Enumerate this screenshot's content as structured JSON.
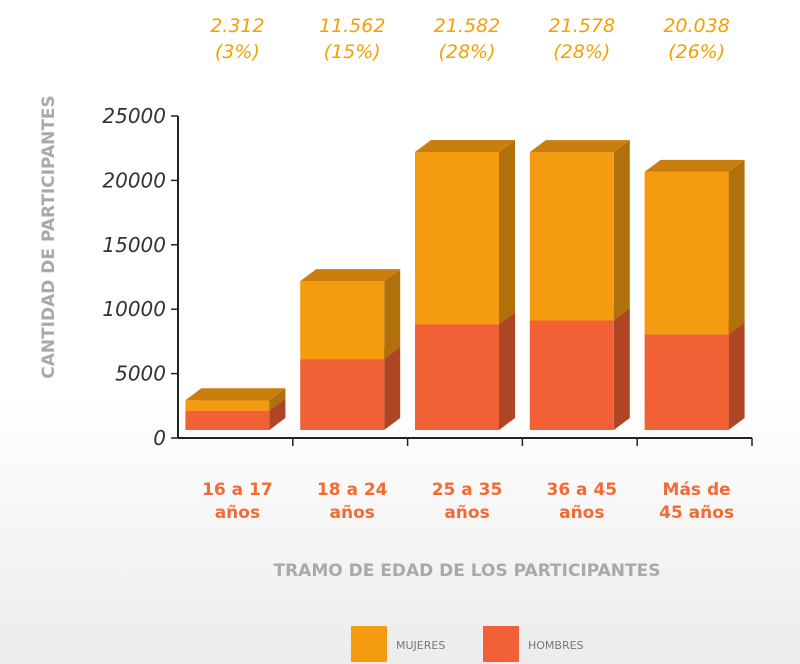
{
  "chart_data": {
    "type": "bar",
    "stacked": true,
    "three_d": true,
    "categories": [
      [
        "16 a 17",
        "años"
      ],
      [
        "18 a 24",
        "años"
      ],
      [
        "25 a 35",
        "años"
      ],
      [
        "36 a 45",
        "años"
      ],
      [
        "Más de",
        "45 años"
      ]
    ],
    "series": [
      {
        "name": "HOMBRES",
        "color": "#f26135",
        "values": [
          1500,
          5500,
          8200,
          8500,
          7400
        ]
      },
      {
        "name": "MUJERES",
        "color": "#f49b10",
        "values": [
          812,
          6062,
          13382,
          13078,
          12638
        ]
      }
    ],
    "totals": [
      {
        "value": "2.312",
        "percent": "(3%)"
      },
      {
        "value": "11.562",
        "percent": "(15%)"
      },
      {
        "value": "21.582",
        "percent": "(28%)"
      },
      {
        "value": "21.578",
        "percent": "(28%)"
      },
      {
        "value": "20.038",
        "percent": "(26%)"
      }
    ],
    "ylabel": "CANTIDAD DE PARTICIPANTES",
    "xlabel": "TRAMO DE EDAD DE LOS PARTICIPANTES",
    "yticks": [
      "0",
      "5000",
      "10000",
      "15000",
      "20000",
      "25000"
    ],
    "ylim": [
      0,
      25000
    ],
    "legend": {
      "placement": "bottom",
      "items": [
        "MUJERES",
        "HOMBRES"
      ]
    },
    "grid": false
  }
}
